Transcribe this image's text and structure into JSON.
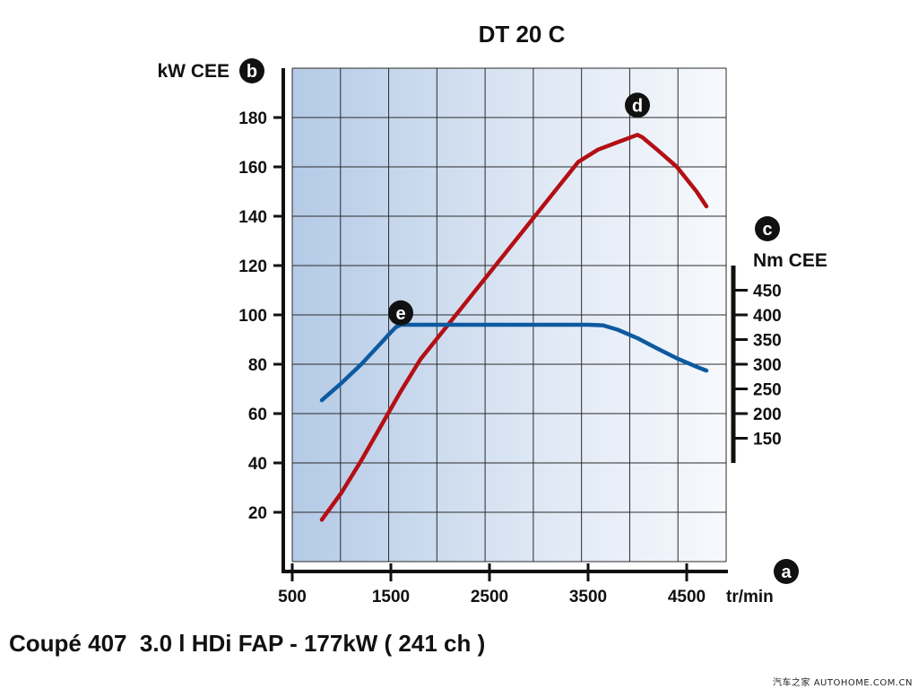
{
  "chart_data": {
    "type": "line",
    "title": "DT 20 C",
    "x_unit": "tr/min",
    "x_ticks": [
      500,
      1500,
      2500,
      3500,
      4500
    ],
    "xlim": [
      500,
      4900
    ],
    "left_axis": {
      "label": "kW CEE",
      "marker": "b",
      "ticks": [
        20,
        40,
        60,
        80,
        100,
        120,
        140,
        160,
        180
      ],
      "range": [
        0,
        200
      ]
    },
    "right_axis": {
      "label": "Nm CEE",
      "marker": "c",
      "ticks": [
        150,
        200,
        250,
        300,
        350,
        400,
        450
      ],
      "range": [
        100,
        500
      ]
    },
    "x_marker": "a",
    "grid": true,
    "series": [
      {
        "id": "power",
        "marker": "d",
        "axis": "left",
        "color": "#b40f14",
        "x": [
          800,
          1000,
          1200,
          1400,
          1600,
          1800,
          2000,
          2200,
          2400,
          2600,
          2800,
          3000,
          3200,
          3400,
          3600,
          3800,
          4000,
          4050,
          4200,
          4400,
          4600,
          4700
        ],
        "y": [
          17,
          28,
          41,
          55,
          69,
          82,
          92,
          102,
          112,
          122,
          132,
          142,
          152,
          162,
          167,
          170,
          173,
          172,
          167,
          160,
          150,
          144
        ]
      },
      {
        "id": "torque",
        "marker": "e",
        "axis": "right",
        "color": "#0d5aa0",
        "x": [
          800,
          1000,
          1200,
          1400,
          1500,
          1550,
          1600,
          1700,
          2000,
          2500,
          3000,
          3500,
          3650,
          3800,
          4000,
          4200,
          4400,
          4600,
          4700
        ],
        "y": [
          227,
          262,
          300,
          343,
          365,
          375,
          380,
          380,
          380,
          380,
          380,
          380,
          379,
          370,
          353,
          332,
          312,
          295,
          287
        ]
      }
    ]
  },
  "caption": "Coupé 407  3.0 l HDi FAP - 177kW ( 241 ch )",
  "watermark": "汽车之家 AUTOHOME.COM.CN"
}
